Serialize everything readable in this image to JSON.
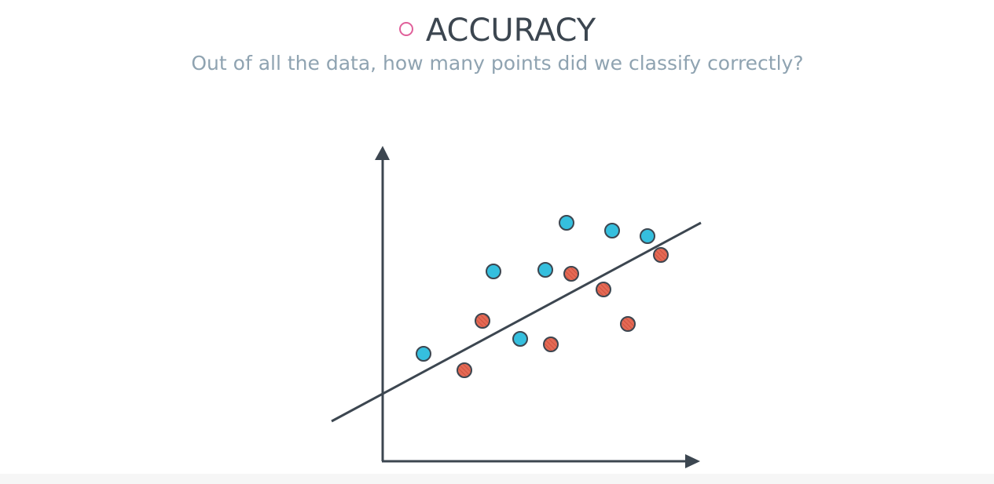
{
  "header": {
    "title": "ACCURACY",
    "subtitle": "Out of all the data, how many points did we classify correctly?"
  }
}
